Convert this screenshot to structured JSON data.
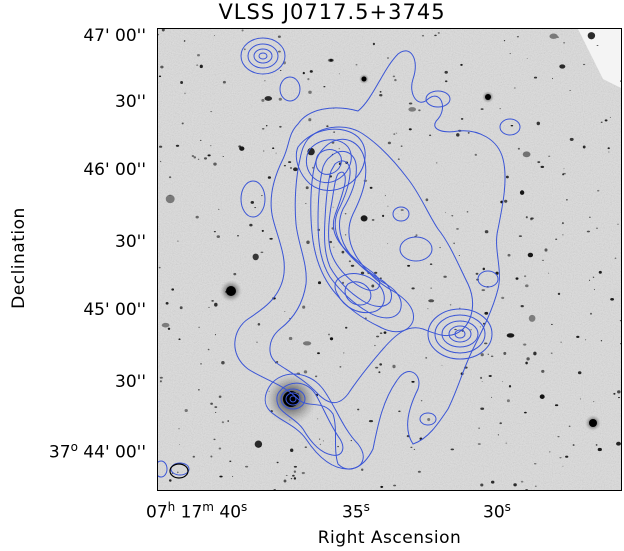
{
  "title": "VLSS J0717.5+3745",
  "axes": {
    "xlabel": "Right Ascension",
    "ylabel": "Declination",
    "yticks": [
      {
        "deg": "",
        "arc": "47' 00''"
      },
      {
        "deg": "",
        "arc": "30''"
      },
      {
        "deg": "",
        "arc": "46' 00''"
      },
      {
        "deg": "",
        "arc": "30''"
      },
      {
        "deg": "",
        "arc": "45' 00''"
      },
      {
        "deg": "",
        "arc": "30''"
      },
      {
        "deg": "37",
        "deg_sup": "o",
        "arc": " 44' 00''"
      }
    ],
    "xticks": {
      "first": {
        "h": "07",
        "h_sup": "h",
        "m": " 17",
        "m_sup": "m",
        "s": " 40",
        "s_sup": "s"
      },
      "second": {
        "s": "35",
        "s_sup": "s"
      },
      "third": {
        "s": "30",
        "s_sup": "s"
      }
    }
  },
  "colors": {
    "contour": "#3a55d6",
    "sky": "#d8d8d8",
    "source": "#111111"
  }
}
